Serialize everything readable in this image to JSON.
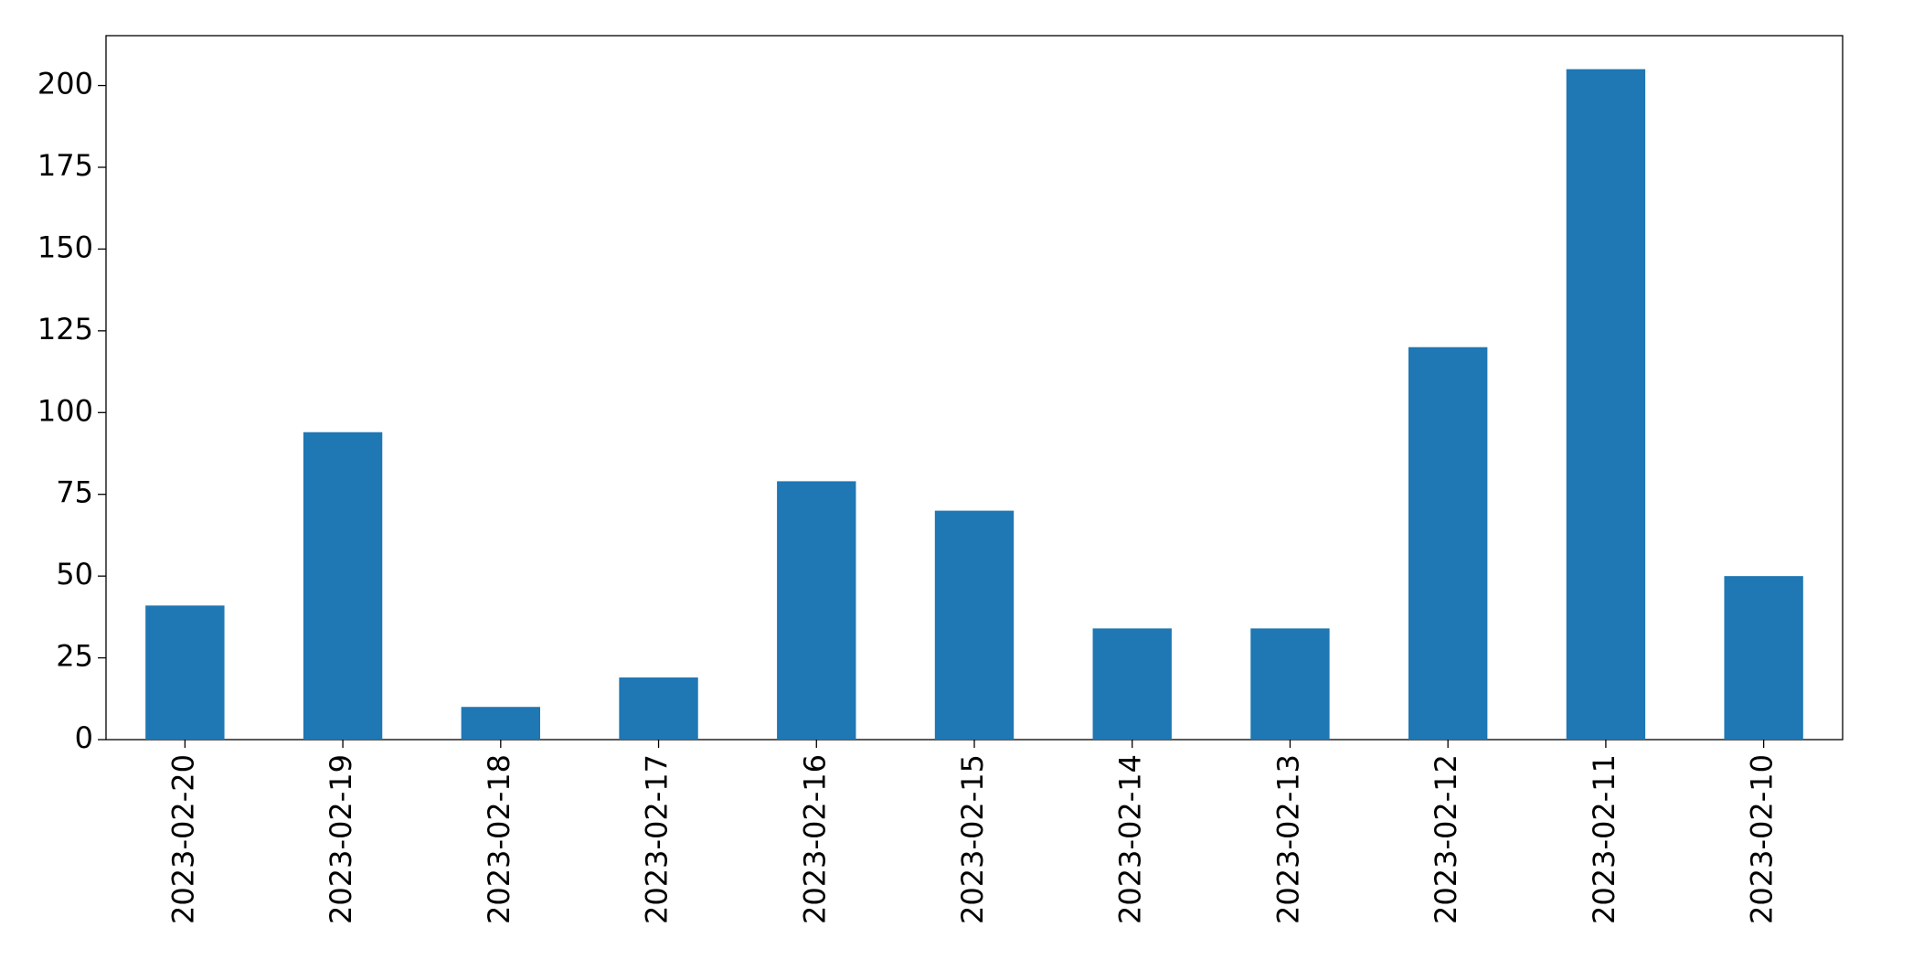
{
  "chart_data": {
    "type": "bar",
    "categories": [
      "2023-02-20",
      "2023-02-19",
      "2023-02-18",
      "2023-02-17",
      "2023-02-16",
      "2023-02-15",
      "2023-02-14",
      "2023-02-13",
      "2023-02-12",
      "2023-02-11",
      "2023-02-10"
    ],
    "values": [
      41,
      94,
      10,
      19,
      79,
      70,
      34,
      34,
      120,
      205,
      50
    ],
    "color": "#1f77b4",
    "ylim": [
      0,
      215.25
    ],
    "yticks": [
      0,
      25,
      50,
      75,
      100,
      125,
      150,
      175,
      200
    ],
    "grid": false
  }
}
